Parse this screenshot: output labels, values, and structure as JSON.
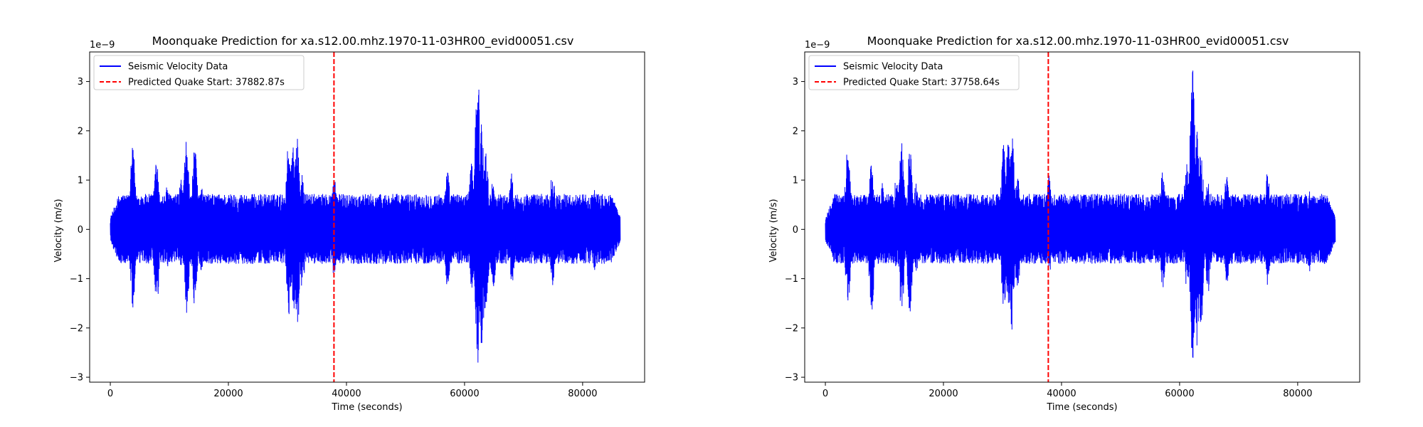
{
  "chart_data": [
    {
      "type": "line",
      "title": "Moonquake Prediction for xa.s12.00.mhz.1970-11-03HR00_evid00051.csv",
      "xlabel": "Time (seconds)",
      "ylabel": "Velocity (m/s)",
      "y_offset_label": "1e−9",
      "y_scale": 1e-09,
      "xlim": [
        -3500,
        90500
      ],
      "ylim": [
        -3.1,
        3.6
      ],
      "xticks": [
        0,
        20000,
        40000,
        60000,
        80000
      ],
      "xtick_labels": [
        "0",
        "20000",
        "40000",
        "60000",
        "80000"
      ],
      "yticks": [
        -3,
        -2,
        -1,
        0,
        1,
        2,
        3
      ],
      "ytick_labels": [
        "−3",
        "−2",
        "−1",
        "0",
        "1",
        "2",
        "3"
      ],
      "grid": false,
      "legend_position": "top-left",
      "series": [
        {
          "name": "Seismic Velocity Data",
          "kind": "line",
          "color": "#0000ff",
          "x_range": [
            0,
            86400
          ],
          "envelope": {
            "background_max": 0.72,
            "background_min": -0.7,
            "spikes": [
              {
                "x": 3800,
                "max": 1.68,
                "min": -1.62
              },
              {
                "x": 7800,
                "max": 1.42,
                "min": -1.68
              },
              {
                "x": 9700,
                "max": 0.95,
                "min": -0.75
              },
              {
                "x": 12000,
                "max": 1.05,
                "min": -0.8
              },
              {
                "x": 12900,
                "max": 1.8,
                "min": -1.75
              },
              {
                "x": 14300,
                "max": 1.65,
                "min": -1.7
              },
              {
                "x": 15400,
                "max": 1.0,
                "min": -0.85
              },
              {
                "x": 30200,
                "max": 1.78,
                "min": -1.75
              },
              {
                "x": 31000,
                "max": 1.85,
                "min": -1.65
              },
              {
                "x": 31600,
                "max": 1.92,
                "min": -2.15
              },
              {
                "x": 32500,
                "max": 1.15,
                "min": -1.35
              },
              {
                "x": 37900,
                "max": 1.1,
                "min": -1.0
              },
              {
                "x": 57100,
                "max": 1.2,
                "min": -1.2
              },
              {
                "x": 61200,
                "max": 1.4,
                "min": -1.2
              },
              {
                "x": 62200,
                "max": 3.3,
                "min": -2.75
              },
              {
                "x": 62900,
                "max": 2.2,
                "min": -2.5
              },
              {
                "x": 63600,
                "max": 1.6,
                "min": -2.0
              },
              {
                "x": 64800,
                "max": 1.0,
                "min": -1.3
              },
              {
                "x": 68000,
                "max": 1.15,
                "min": -1.1
              },
              {
                "x": 74900,
                "max": 1.2,
                "min": -1.15
              },
              {
                "x": 82000,
                "max": 0.82,
                "min": -0.85
              }
            ]
          }
        },
        {
          "name": "Predicted Quake Start: 37882.87s",
          "kind": "vline",
          "color": "#ff0000",
          "x": 37882.87
        }
      ]
    },
    {
      "type": "line",
      "title": "Moonquake Prediction for xa.s12.00.mhz.1970-11-03HR00_evid00051.csv",
      "xlabel": "Time (seconds)",
      "ylabel": "Velocity (m/s)",
      "y_offset_label": "1e−9",
      "y_scale": 1e-09,
      "xlim": [
        -3500,
        90500
      ],
      "ylim": [
        -3.1,
        3.6
      ],
      "xticks": [
        0,
        20000,
        40000,
        60000,
        80000
      ],
      "xtick_labels": [
        "0",
        "20000",
        "40000",
        "60000",
        "80000"
      ],
      "yticks": [
        -3,
        -2,
        -1,
        0,
        1,
        2,
        3
      ],
      "ytick_labels": [
        "−3",
        "−2",
        "−1",
        "0",
        "1",
        "2",
        "3"
      ],
      "grid": false,
      "legend_position": "top-left",
      "series": [
        {
          "name": "Seismic Velocity Data",
          "kind": "line",
          "color": "#0000ff",
          "x_range": [
            0,
            86400
          ],
          "envelope": {
            "background_max": 0.72,
            "background_min": -0.7,
            "spikes": [
              {
                "x": 3800,
                "max": 1.68,
                "min": -1.62
              },
              {
                "x": 7800,
                "max": 1.42,
                "min": -1.68
              },
              {
                "x": 9700,
                "max": 0.95,
                "min": -0.75
              },
              {
                "x": 12000,
                "max": 1.05,
                "min": -0.8
              },
              {
                "x": 12900,
                "max": 1.8,
                "min": -1.75
              },
              {
                "x": 14300,
                "max": 1.65,
                "min": -1.7
              },
              {
                "x": 15400,
                "max": 1.0,
                "min": -0.85
              },
              {
                "x": 30200,
                "max": 1.78,
                "min": -1.75
              },
              {
                "x": 31000,
                "max": 1.85,
                "min": -1.65
              },
              {
                "x": 31600,
                "max": 1.92,
                "min": -2.15
              },
              {
                "x": 32500,
                "max": 1.15,
                "min": -1.35
              },
              {
                "x": 37900,
                "max": 1.1,
                "min": -1.0
              },
              {
                "x": 57100,
                "max": 1.2,
                "min": -1.2
              },
              {
                "x": 61200,
                "max": 1.4,
                "min": -1.2
              },
              {
                "x": 62200,
                "max": 3.3,
                "min": -2.75
              },
              {
                "x": 62900,
                "max": 2.2,
                "min": -2.5
              },
              {
                "x": 63600,
                "max": 1.6,
                "min": -2.0
              },
              {
                "x": 64800,
                "max": 1.0,
                "min": -1.3
              },
              {
                "x": 68000,
                "max": 1.15,
                "min": -1.1
              },
              {
                "x": 74900,
                "max": 1.2,
                "min": -1.15
              },
              {
                "x": 82000,
                "max": 0.82,
                "min": -0.85
              }
            ]
          }
        },
        {
          "name": "Predicted Quake Start: 37758.64s",
          "kind": "vline",
          "color": "#ff0000",
          "x": 37758.64
        }
      ]
    }
  ]
}
